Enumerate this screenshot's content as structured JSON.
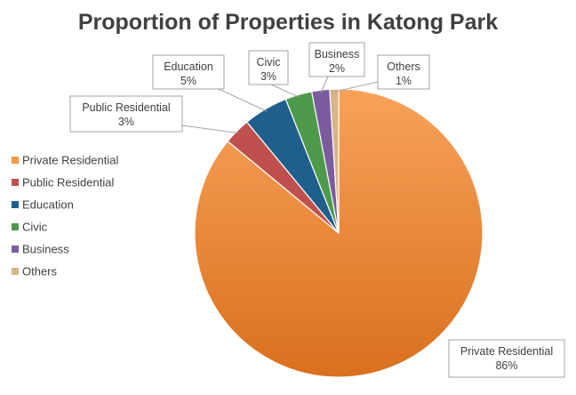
{
  "chart_data": {
    "type": "pie",
    "title": "Proportion of Properties in Katong Park",
    "legend_position": "left",
    "slices": [
      {
        "label": "Private Residential",
        "value": 86,
        "display": "86%",
        "color": "#F79646"
      },
      {
        "label": "Public Residential",
        "value": 3,
        "display": "3%",
        "color": "#C0504D"
      },
      {
        "label": "Education",
        "value": 5,
        "display": "5%",
        "color": "#1F5F8B"
      },
      {
        "label": "Civic",
        "value": 3,
        "display": "3%",
        "color": "#4E9A4A"
      },
      {
        "label": "Business",
        "value": 2,
        "display": "2%",
        "color": "#7A5C9E"
      },
      {
        "label": "Others",
        "value": 1,
        "display": "1%",
        "color": "#D8B48A"
      }
    ]
  }
}
